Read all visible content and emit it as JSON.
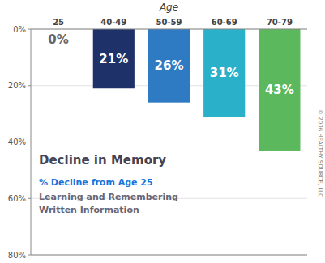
{
  "chart_data": {
    "type": "bar",
    "title": "Age",
    "categories": [
      "25",
      "40-49",
      "50-59",
      "60-69",
      "70-79"
    ],
    "values": [
      0,
      21,
      26,
      31,
      43
    ],
    "value_labels": [
      "0%",
      "21%",
      "26%",
      "31%",
      "43%"
    ],
    "colors": [
      "#b0b0b0",
      "#1e3168",
      "#2e7bc4",
      "#2ab0c8",
      "#5cb85c"
    ],
    "ylim": [
      80,
      0
    ],
    "yticks": [
      {
        "value": 0,
        "label": "0%"
      },
      {
        "value": 20,
        "label": "20%"
      },
      {
        "value": 40,
        "label": "40%"
      },
      {
        "value": 60,
        "label": "60%"
      },
      {
        "value": 80,
        "label": "80%"
      }
    ],
    "grid": true,
    "data_labels": true,
    "annotations": [
      "Decline in Memory",
      "% Decline from Age 25",
      "Learning and Remembering",
      "Written Information",
      "© 2006 HEALTHY SOURCE, LLC"
    ]
  }
}
